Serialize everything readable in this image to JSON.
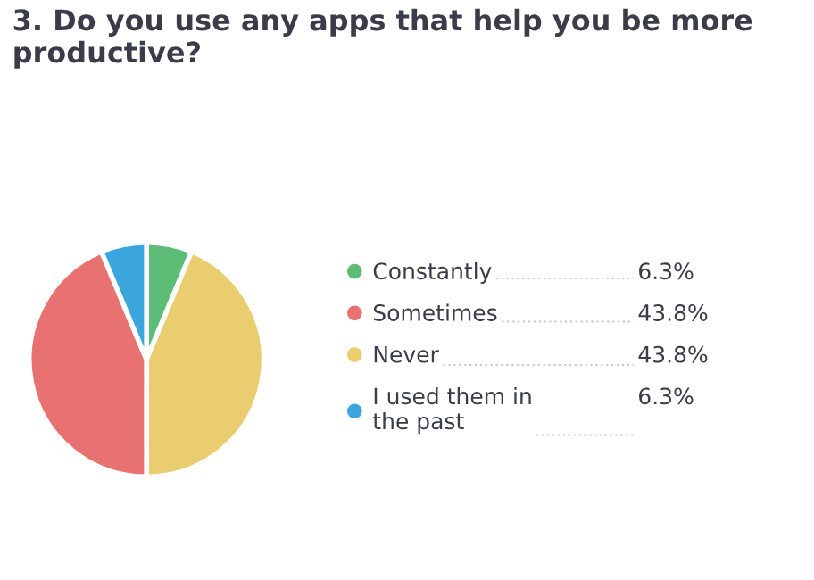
{
  "chart_data": {
    "type": "pie",
    "title": "3. Do you use any apps that help you be more productive?",
    "categories": [
      "Constantly",
      "Sometimes",
      "Never",
      "I used them in\nthe past"
    ],
    "values": [
      6.3,
      43.8,
      43.8,
      6.3
    ],
    "colors": [
      "#5dbd77",
      "#e87272",
      "#e9cd6f",
      "#3ba5dd"
    ],
    "value_labels": [
      "6.3%",
      "43.8%",
      "43.8%",
      "6.3%"
    ],
    "legend": "right"
  }
}
